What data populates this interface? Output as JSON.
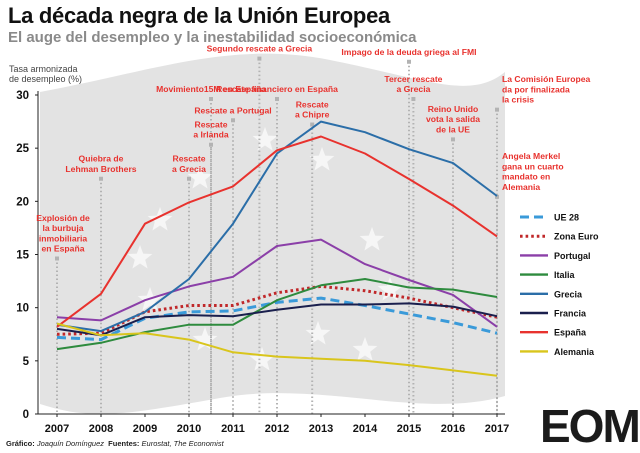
{
  "header": {
    "title": "La década negra de la Unión Europea",
    "subtitle": "El auge del desempleo y la inestabilidad socioeconómica"
  },
  "credits": {
    "grafico_label": "Gráfico:",
    "grafico_author": "Joaquín Domínguez",
    "fuentes_label": "Fuentes:",
    "fuentes": "Eurostat, The Economist"
  },
  "logo": {
    "text": "EOM"
  },
  "colors": {
    "annotation": "#e8322e",
    "background_flag": "#e3e3e3",
    "axis": "#222222"
  },
  "chart_data": {
    "type": "line",
    "ylabel": "Tasa armonizada de desempleo (%)",
    "ylim": [
      0,
      30
    ],
    "yticks": [
      0,
      5,
      10,
      15,
      20,
      25,
      30
    ],
    "xlim": [
      2007,
      2017
    ],
    "x": [
      "2007",
      "2008",
      "2009",
      "2010",
      "2011",
      "2012",
      "2013",
      "2014",
      "2015",
      "2016",
      "2017"
    ],
    "legend_position": "right",
    "series": [
      {
        "name": "UE 28",
        "color": "#3a9ad9",
        "dash": "dash",
        "values": [
          7.2,
          7.0,
          9.0,
          9.6,
          9.7,
          10.5,
          10.9,
          10.2,
          9.4,
          8.6,
          7.6
        ]
      },
      {
        "name": "Zona Euro",
        "color": "#c0282a",
        "dash": "dot",
        "values": [
          7.5,
          7.6,
          9.6,
          10.2,
          10.2,
          11.4,
          12.0,
          11.6,
          10.9,
          10.0,
          9.1
        ]
      },
      {
        "name": "Portugal",
        "color": "#8b3fa8",
        "dash": "solid",
        "values": [
          9.1,
          8.8,
          10.7,
          12.0,
          12.9,
          15.8,
          16.4,
          14.1,
          12.6,
          11.2,
          8.2
        ]
      },
      {
        "name": "Italia",
        "color": "#2e8b3e",
        "dash": "solid",
        "values": [
          6.1,
          6.7,
          7.7,
          8.4,
          8.4,
          10.7,
          12.1,
          12.7,
          11.9,
          11.7,
          11.0
        ]
      },
      {
        "name": "Grecia",
        "color": "#2b6ea8",
        "dash": "solid",
        "values": [
          8.4,
          7.8,
          9.6,
          12.7,
          17.9,
          24.5,
          27.5,
          26.5,
          24.9,
          23.6,
          20.5
        ]
      },
      {
        "name": "Francia",
        "color": "#1a1f4d",
        "dash": "solid",
        "values": [
          8.0,
          7.4,
          9.1,
          9.3,
          9.2,
          9.8,
          10.3,
          10.3,
          10.4,
          10.1,
          9.2
        ]
      },
      {
        "name": "España",
        "color": "#e8322e",
        "dash": "solid",
        "values": [
          8.2,
          11.3,
          17.9,
          19.9,
          21.4,
          24.8,
          26.1,
          24.5,
          22.1,
          19.6,
          16.7
        ]
      },
      {
        "name": "Alemania",
        "color": "#d9c51c",
        "dash": "solid",
        "values": [
          8.5,
          7.4,
          7.6,
          7.0,
          5.8,
          5.4,
          5.2,
          5.0,
          4.6,
          4.1,
          3.6
        ]
      }
    ],
    "annotations": [
      {
        "x": 2007,
        "top": 15,
        "lines": [
          "Explosión de",
          "la burbuja",
          "inmobiliaria",
          "en España"
        ]
      },
      {
        "x": 2008,
        "top": 22.5,
        "lines": [
          "Quiebra de",
          "Lehman Brothers"
        ]
      },
      {
        "x": 2010,
        "top": 22.5,
        "lines": [
          "Rescate",
          "a Grecia"
        ]
      },
      {
        "x": 2010.5,
        "top": 30,
        "lines": [
          "Movimiento15M en España"
        ]
      },
      {
        "x": 2010.5,
        "top": 25.7,
        "lines": [
          "Rescate",
          "a Irlanda"
        ]
      },
      {
        "x": 2011,
        "top": 28,
        "lines": [
          "Rescate a Portugal"
        ]
      },
      {
        "x": 2011.6,
        "top": 33.8,
        "lines": [
          "Segundo rescate a Grecia"
        ]
      },
      {
        "x": 2012,
        "top": 30,
        "lines": [
          "Rescate financiero en España"
        ]
      },
      {
        "x": 2012.8,
        "top": 27.6,
        "lines": [
          "Rescate",
          "a Chipre"
        ]
      },
      {
        "x": 2015,
        "top": 33.5,
        "lines": [
          "Impago de la deuda griega al FMI"
        ]
      },
      {
        "x": 2015.1,
        "top": 30,
        "lines": [
          "Tercer rescate",
          "a Grecia"
        ]
      },
      {
        "x": 2016,
        "top": 26.2,
        "lines": [
          "Reino Unido",
          "vota la salida",
          "de la UE"
        ]
      },
      {
        "x": 2017,
        "top": 29,
        "lines": [
          "La Comisión Europea",
          "da por finalizada",
          "la crisis"
        ]
      },
      {
        "x": 2017,
        "top": 20.8,
        "lines": [
          "Angela Merkel",
          "gana un cuarto",
          "mandato en",
          "Alemania"
        ]
      }
    ]
  }
}
